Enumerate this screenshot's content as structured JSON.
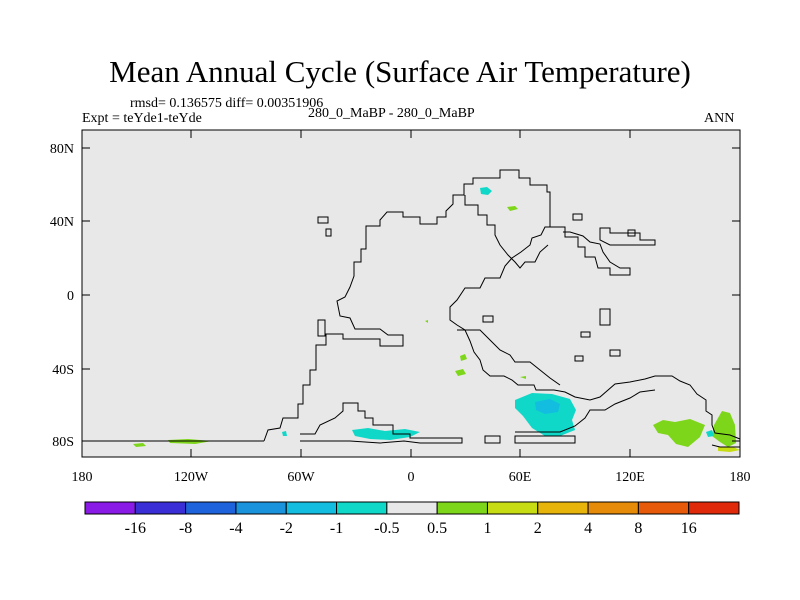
{
  "title": "Mean Annual Cycle (Surface Air Temperature)",
  "stats": "rmsd= 0.136575 diff= 0.00351906",
  "experiment": "Expt = teYde1-teYde",
  "comparison": "280_0_MaBP - 280_0_MaBP",
  "season": "ANN",
  "lat_labels": [
    "80N",
    "40N",
    "0",
    "40S",
    "80S"
  ],
  "lon_labels": [
    "180",
    "120W",
    "60W",
    "0",
    "60E",
    "120E",
    "180"
  ],
  "colorbar": {
    "colors": [
      "#8a1ae6",
      "#3a2fd6",
      "#1f63dc",
      "#1a93dc",
      "#12bde0",
      "#10d8c8",
      "#e8e8e8",
      "#7ed61a",
      "#c8dc14",
      "#e6b40a",
      "#e68a0a",
      "#e65a0a",
      "#e0280a"
    ],
    "labels": [
      "-16",
      "-8",
      "-4",
      "-2",
      "-1",
      "-0.5",
      "0.5",
      "1",
      "2",
      "4",
      "8",
      "16"
    ]
  },
  "map_background": "#e8e8e8"
}
